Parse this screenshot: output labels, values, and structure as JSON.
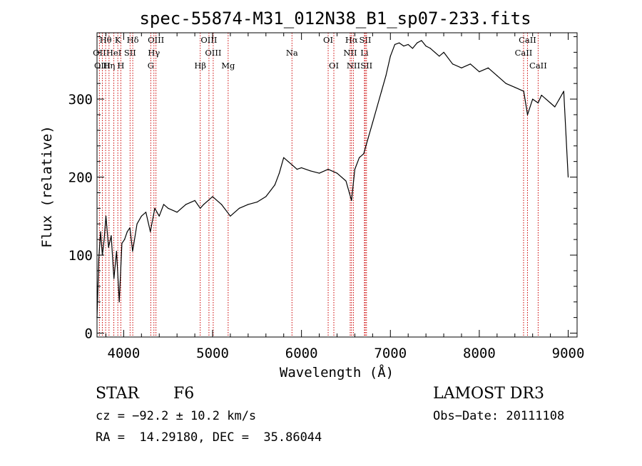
{
  "chart_data": {
    "type": "line",
    "title": "spec-55874-M31_012N38_B1_sp07-233.fits",
    "xlabel": "Wavelength (Å)",
    "ylabel": "Flux (relative)",
    "xlim": [
      3700,
      9100
    ],
    "ylim": [
      -5,
      385
    ],
    "xticks": [
      4000,
      5000,
      6000,
      7000,
      8000,
      9000
    ],
    "yticks": [
      0,
      100,
      200,
      300
    ],
    "xtick_labels": [
      "4000",
      "5000",
      "6000",
      "7000",
      "8000",
      "9000"
    ],
    "ytick_labels": [
      "0",
      "100",
      "200",
      "300"
    ],
    "series": [
      {
        "name": "flux",
        "x": [
          3700,
          3720,
          3740,
          3760,
          3780,
          3800,
          3830,
          3860,
          3890,
          3920,
          3950,
          3980,
          4010,
          4040,
          4070,
          4100,
          4150,
          4200,
          4250,
          4300,
          4350,
          4400,
          4450,
          4500,
          4600,
          4700,
          4800,
          4861,
          4900,
          5000,
          5100,
          5200,
          5300,
          5400,
          5500,
          5600,
          5700,
          5750,
          5800,
          5850,
          5900,
          5950,
          6000,
          6100,
          6200,
          6300,
          6400,
          6500,
          6563,
          6600,
          6650,
          6700,
          6750,
          6800,
          6850,
          6900,
          6950,
          7000,
          7050,
          7100,
          7150,
          7200,
          7250,
          7300,
          7350,
          7400,
          7450,
          7500,
          7550,
          7600,
          7700,
          7800,
          7900,
          8000,
          8100,
          8200,
          8300,
          8400,
          8500,
          8542,
          8600,
          8662,
          8700,
          8750,
          8800,
          8850,
          8900,
          8950,
          9000
        ],
        "values": [
          20,
          95,
          130,
          100,
          120,
          150,
          110,
          125,
          70,
          105,
          40,
          115,
          120,
          130,
          135,
          105,
          140,
          150,
          155,
          130,
          160,
          150,
          165,
          160,
          155,
          165,
          170,
          160,
          165,
          175,
          165,
          150,
          160,
          165,
          168,
          175,
          190,
          205,
          225,
          220,
          215,
          210,
          212,
          208,
          205,
          210,
          205,
          195,
          170,
          210,
          225,
          230,
          250,
          270,
          290,
          310,
          330,
          355,
          370,
          372,
          368,
          370,
          365,
          372,
          375,
          368,
          365,
          360,
          355,
          360,
          345,
          340,
          345,
          335,
          340,
          330,
          320,
          315,
          310,
          280,
          300,
          295,
          305,
          300,
          295,
          290,
          300,
          310,
          200
        ]
      }
    ],
    "spectral_lines": [
      {
        "label": "Hθ",
        "x": 3797,
        "row": 0
      },
      {
        "label": "K",
        "x": 3934,
        "row": 0
      },
      {
        "label": "Hδ",
        "x": 4102,
        "row": 0
      },
      {
        "label": "OIII",
        "x": 4363,
        "row": 0
      },
      {
        "label": "OIII",
        "x": 4959,
        "row": 0
      },
      {
        "label": "OI",
        "x": 6300,
        "row": 0
      },
      {
        "label": "Hα",
        "x": 6563,
        "row": 0
      },
      {
        "label": "SII",
        "x": 6717,
        "row": 0
      },
      {
        "label": "CaII",
        "x": 8542,
        "row": 0
      },
      {
        "label": "OII",
        "x": 3727,
        "row": 1
      },
      {
        "label": "HeI",
        "x": 3889,
        "row": 1
      },
      {
        "label": "SII",
        "x": 4072,
        "row": 1
      },
      {
        "label": "Hγ",
        "x": 4340,
        "row": 1
      },
      {
        "label": "OIII",
        "x": 5007,
        "row": 1
      },
      {
        "label": "Na",
        "x": 5893,
        "row": 1
      },
      {
        "label": "NII",
        "x": 6548,
        "row": 1
      },
      {
        "label": "Li",
        "x": 6708,
        "row": 1
      },
      {
        "label": "CaII",
        "x": 8498,
        "row": 1
      },
      {
        "label": "OIII",
        "x": 3760,
        "row": 2
      },
      {
        "label": "Hη",
        "x": 3835,
        "row": 2
      },
      {
        "label": "H",
        "x": 3968,
        "row": 2
      },
      {
        "label": "G",
        "x": 4305,
        "row": 2
      },
      {
        "label": "Hβ",
        "x": 4861,
        "row": 2
      },
      {
        "label": "Mg",
        "x": 5175,
        "row": 2
      },
      {
        "label": "OI",
        "x": 6364,
        "row": 2
      },
      {
        "label": "NII",
        "x": 6584,
        "row": 2
      },
      {
        "label": "SII",
        "x": 6731,
        "row": 2
      },
      {
        "label": "CaII",
        "x": 8662,
        "row": 2
      }
    ],
    "line_color": "#000000",
    "marker_color": "#cc0000"
  },
  "info": {
    "object_class": "STAR",
    "subclass": "F6",
    "survey": "LAMOST DR3",
    "cz": "cz = −92.2 ± 10.2 km/s",
    "obs_date": "Obs−Date: 20111108",
    "coords": "RA =  14.29180, DEC =  35.86044"
  }
}
